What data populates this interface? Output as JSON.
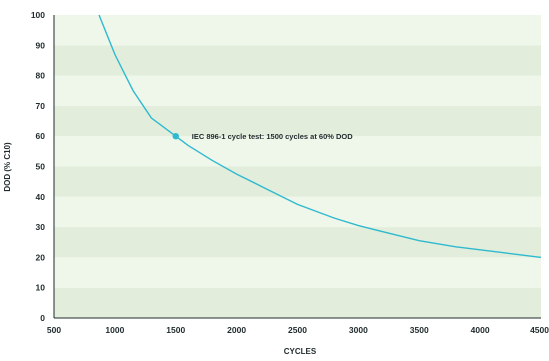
{
  "chart_data": {
    "type": "line",
    "xlabel": "CYCLES",
    "ylabel": "DOD (% C10)",
    "xlim": [
      500,
      4500
    ],
    "ylim": [
      0,
      100
    ],
    "x_ticks": [
      500,
      1000,
      1500,
      2000,
      2500,
      3000,
      3500,
      4000,
      4500
    ],
    "y_ticks": [
      0,
      10,
      20,
      30,
      40,
      50,
      60,
      70,
      80,
      90,
      100
    ],
    "grid": false,
    "band_colors": [
      "#e2eedb",
      "#eff6ea"
    ],
    "series": [
      {
        "color": "#2fb9cf",
        "x": [
          870,
          900,
          950,
          1000,
          1050,
          1100,
          1150,
          1200,
          1250,
          1300,
          1400,
          1500,
          1600,
          1800,
          2000,
          2200,
          2500,
          2800,
          3000,
          3300,
          3500,
          3800,
          4000,
          4200,
          4500
        ],
        "y": [
          100,
          97,
          92,
          87,
          83,
          79,
          75,
          72,
          69,
          66,
          63,
          60,
          57,
          52,
          47.5,
          43.5,
          37.5,
          33,
          30.5,
          27.5,
          25.5,
          23.5,
          22.5,
          21.5,
          20
        ]
      }
    ],
    "highlight_point": {
      "x": 1500,
      "y": 60,
      "color": "#2fb9cf"
    },
    "annotation": {
      "text": "IEC 896-1 cycle test: 1500 cycles at 60% DOD",
      "x": 1500,
      "y": 60
    }
  }
}
